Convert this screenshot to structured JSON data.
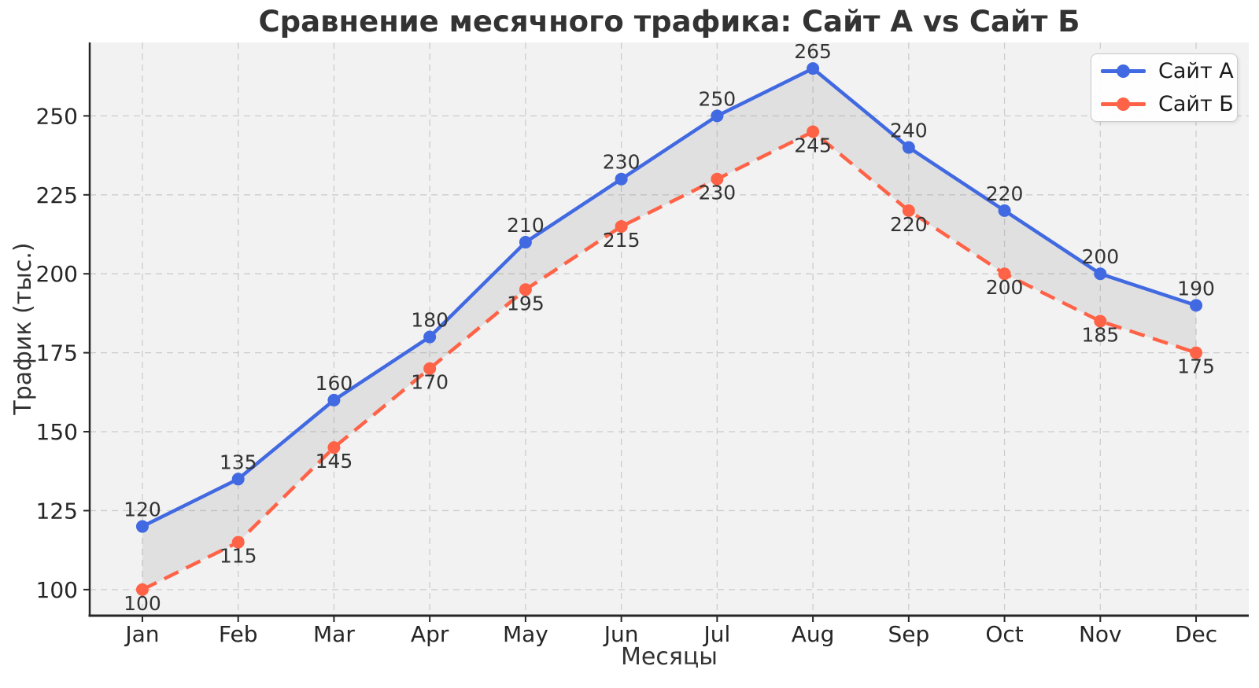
{
  "chart_data": {
    "type": "line",
    "title": "Сравнение месячного трафика: Сайт А vs Сайт Б",
    "xlabel": "Месяцы",
    "ylabel": "Трафик (тыс.)",
    "categories": [
      "Jan",
      "Feb",
      "Mar",
      "Apr",
      "May",
      "Jun",
      "Jul",
      "Aug",
      "Sep",
      "Oct",
      "Nov",
      "Dec"
    ],
    "series": [
      {
        "name": "Сайт А",
        "color": "#4169E1",
        "line_style": "solid",
        "marker": "circle",
        "label_position": "above",
        "values": [
          120,
          135,
          160,
          180,
          210,
          230,
          250,
          265,
          240,
          220,
          200,
          190
        ]
      },
      {
        "name": "Сайт Б",
        "color": "#FF6347",
        "line_style": "dashed",
        "marker": "circle",
        "label_position": "below",
        "values": [
          100,
          115,
          145,
          170,
          195,
          215,
          230,
          245,
          220,
          200,
          185,
          175
        ]
      }
    ],
    "yticks": [
      100,
      125,
      150,
      175,
      200,
      225,
      250
    ],
    "ylim": [
      91.75,
      273.25
    ],
    "grid": true,
    "grid_color": "#cccccc",
    "plot_background": "#f2f2f2",
    "figure_background": "#ffffff",
    "spine_color": "#262626",
    "tick_label_color": "#262626",
    "data_label_color": "#333333",
    "fill_between": {
      "enabled": true,
      "color": "#808080",
      "opacity": 0.16
    },
    "legend_position": "top-right"
  }
}
